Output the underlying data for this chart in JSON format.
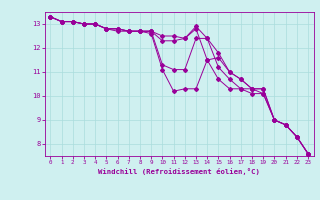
{
  "xlabel": "Windchill (Refroidissement éolien,°C)",
  "ylabel": "",
  "bg_color": "#cff0f0",
  "grid_color": "#aadddd",
  "line_color": "#990099",
  "xlim": [
    -0.5,
    23.5
  ],
  "ylim": [
    7.5,
    13.5
  ],
  "xticks": [
    0,
    1,
    2,
    3,
    4,
    5,
    6,
    7,
    8,
    9,
    10,
    11,
    12,
    13,
    14,
    15,
    16,
    17,
    18,
    19,
    20,
    21,
    22,
    23
  ],
  "yticks": [
    8,
    9,
    10,
    11,
    12,
    13
  ],
  "series1": [
    13.3,
    13.1,
    13.1,
    13.0,
    13.0,
    12.8,
    12.7,
    12.7,
    12.7,
    12.6,
    11.1,
    10.2,
    10.3,
    10.3,
    11.5,
    11.6,
    11.0,
    10.7,
    10.3,
    10.3,
    9.0,
    8.8,
    8.3,
    7.6
  ],
  "series2": [
    13.3,
    13.1,
    13.1,
    13.0,
    13.0,
    12.8,
    12.8,
    12.7,
    12.7,
    12.7,
    11.3,
    11.1,
    11.1,
    12.4,
    12.4,
    11.8,
    11.0,
    10.7,
    10.3,
    10.3,
    9.0,
    8.8,
    8.3,
    7.6
  ],
  "series3": [
    13.3,
    13.1,
    13.1,
    13.0,
    13.0,
    12.8,
    12.8,
    12.7,
    12.7,
    12.7,
    12.3,
    12.3,
    12.4,
    12.9,
    12.4,
    11.2,
    10.7,
    10.3,
    10.3,
    10.1,
    9.0,
    8.8,
    8.3,
    7.6
  ],
  "series4": [
    13.3,
    13.1,
    13.1,
    13.0,
    13.0,
    12.8,
    12.8,
    12.7,
    12.7,
    12.7,
    12.5,
    12.5,
    12.4,
    12.8,
    11.5,
    10.7,
    10.3,
    10.3,
    10.1,
    10.1,
    9.0,
    8.8,
    8.3,
    7.6
  ]
}
